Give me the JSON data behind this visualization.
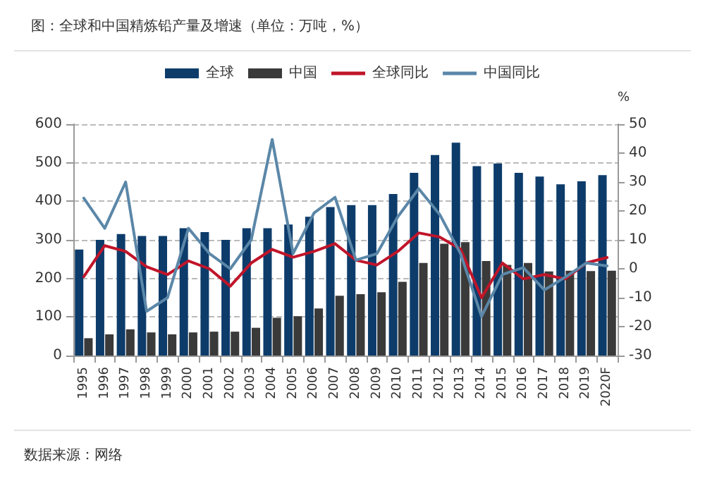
{
  "chart_data": {
    "type": "bar",
    "title": "图：全球和中国精炼铅产量及增速（单位：万吨，%）",
    "y2label": "%",
    "categories": [
      "1995",
      "1996",
      "1997",
      "1998",
      "1999",
      "2000",
      "2001",
      "2002",
      "2003",
      "2004",
      "2005",
      "2006",
      "2007",
      "2008",
      "2009",
      "2010",
      "2011",
      "2012",
      "2013",
      "2014",
      "2015",
      "2016",
      "2017",
      "2018",
      "2019",
      "2020F"
    ],
    "series": [
      {
        "name": "全球",
        "color": "#0d3c6b",
        "values": [
          275,
          300,
          315,
          310,
          310,
          330,
          320,
          300,
          330,
          330,
          340,
          360,
          385,
          390,
          390,
          419,
          474,
          520,
          552,
          491,
          498,
          474,
          464,
          444,
          452,
          468
        ]
      },
      {
        "name": "中国",
        "color": "#3a3a3a",
        "values": [
          45,
          55,
          68,
          60,
          55,
          60,
          62,
          62,
          72,
          98,
          102,
          122,
          155,
          159,
          164,
          191,
          240,
          290,
          294,
          245,
          235,
          240,
          218,
          220,
          219,
          220
        ]
      },
      {
        "name": "全球同比",
        "type": "line",
        "axis": "y2",
        "color": "#c0152a",
        "values": [
          -2.7,
          8,
          6,
          0.7,
          -2,
          2.7,
          0,
          -6,
          2,
          6.7,
          4,
          6,
          8.7,
          3,
          1.3,
          6,
          12.4,
          11,
          6.8,
          -10,
          2,
          -3.5,
          -2,
          -3.5,
          2,
          3.9
        ]
      },
      {
        "name": "中国同比",
        "type": "line",
        "axis": "y2",
        "color": "#5b87a8",
        "values": [
          24.4,
          14,
          30,
          -14.7,
          -10,
          14,
          5.3,
          0,
          10,
          44.7,
          5.3,
          19.3,
          24.7,
          3,
          5.2,
          18,
          27.7,
          18.8,
          5.2,
          -16.5,
          -2,
          0.4,
          -7.3,
          -2.9,
          2,
          1
        ]
      }
    ],
    "ylim": [
      0,
      600
    ],
    "yticks": [
      0,
      100,
      200,
      300,
      400,
      500,
      600
    ],
    "y2lim": [
      -30,
      50
    ],
    "y2ticks": [
      -30,
      -20,
      -10,
      0,
      10,
      20,
      30,
      40,
      50
    ],
    "grid": "y",
    "legend": "top",
    "marker": "none",
    "line_style": "solid",
    "annotations": [
      "数据来源：网络"
    ]
  }
}
